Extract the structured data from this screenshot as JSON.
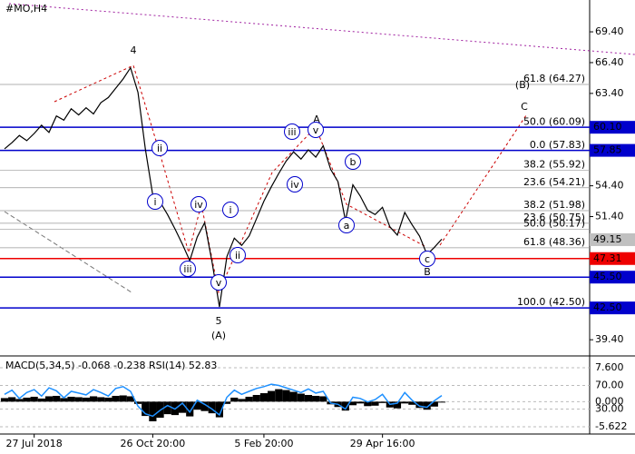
{
  "chart_data": {
    "type": "line",
    "title": "#MO,H4",
    "categories": [
      null,
      null,
      null,
      null,
      "27 Jul 2018",
      null,
      null,
      null,
      null,
      null,
      null,
      null,
      null,
      null,
      null,
      null,
      null,
      null,
      null,
      null,
      "26 Oct 20:00",
      null,
      null,
      null,
      null,
      null,
      null,
      null,
      null,
      null,
      null,
      null,
      null,
      null,
      null,
      "5 Feb 20:00",
      null,
      null,
      null,
      null,
      null,
      null,
      null,
      null,
      null,
      null,
      null,
      null,
      null,
      null,
      null,
      "29 Apr 16:00",
      null,
      null,
      null,
      null,
      null,
      null,
      null,
      null
    ],
    "values": [
      58.0,
      58.6,
      59.3,
      58.8,
      59.5,
      60.3,
      59.6,
      61.2,
      60.8,
      61.9,
      61.3,
      62.0,
      61.4,
      62.5,
      63.0,
      63.9,
      64.8,
      65.9,
      63.5,
      58.0,
      53.5,
      52.8,
      51.6,
      50.2,
      48.7,
      47.1,
      49.4,
      50.8,
      47.0,
      42.6,
      47.5,
      49.3,
      48.6,
      49.5,
      51.2,
      52.9,
      54.3,
      55.6,
      56.8,
      57.7,
      57.0,
      57.9,
      57.2,
      58.3,
      56.0,
      54.8,
      51.0,
      54.5,
      53.4,
      52.0,
      51.6,
      52.3,
      50.4,
      49.6,
      51.8,
      50.6,
      49.5,
      47.7,
      48.4,
      49.2
    ],
    "color": "#000000",
    "ylim": [
      38.0,
      72.5
    ],
    "yticks": [
      {
        "value": 69.4,
        "label": "69.40"
      },
      {
        "value": 66.4,
        "label": "66.40"
      },
      {
        "value": 63.4,
        "label": "63.40"
      },
      {
        "value": 54.4,
        "label": "54.40"
      },
      {
        "value": 51.4,
        "label": "51.40"
      },
      {
        "value": 39.4,
        "label": "39.40"
      }
    ],
    "levels": [
      {
        "value": 60.1,
        "label": "60.10",
        "color": "#0000cc"
      },
      {
        "value": 57.85,
        "label": "57.85",
        "color": "#0000cc"
      },
      {
        "value": 49.15,
        "label": "49.15",
        "color": "#c0c0c0"
      },
      {
        "value": 47.31,
        "label": "47.31",
        "color": "#ee0000"
      },
      {
        "value": 45.5,
        "label": "45.50",
        "color": "#0000cc"
      },
      {
        "value": 42.5,
        "label": "42.50",
        "color": "#0000cc"
      }
    ],
    "fib_levels": [
      {
        "value": 64.27,
        "label": "61.8 (64.27)"
      },
      {
        "value": 60.09,
        "label": "50.0 (60.09)"
      },
      {
        "value": 57.83,
        "label": "0.0 (57.83)"
      },
      {
        "value": 55.92,
        "label": "38.2 (55.92)"
      },
      {
        "value": 54.21,
        "label": "23.6 (54.21)"
      },
      {
        "value": 51.98,
        "label": "38.2 (51.98)"
      },
      {
        "value": 50.75,
        "label": "23.6 (50.75)"
      },
      {
        "value": 50.17,
        "label": "50.0 (50.17)"
      },
      {
        "value": 48.36,
        "label": "61.8 (48.36)"
      },
      {
        "value": 42.5,
        "label": "100.0 (42.50)"
      }
    ],
    "annotations": [
      {
        "text": "4",
        "color": "#8b2500"
      },
      {
        "text": "A",
        "color": "#8b2500"
      },
      {
        "text": "C",
        "color": "#8b2500"
      },
      {
        "text": "(B)",
        "color": "#1a7a1a"
      },
      {
        "text": "B",
        "color": "#8b2500"
      },
      {
        "text": "5",
        "color": "#8b2500"
      },
      {
        "text": "(A)",
        "color": "#1a7a1a"
      },
      {
        "text": "i",
        "color": "#0000cc"
      },
      {
        "text": "ii",
        "color": "#0000cc"
      },
      {
        "text": "iii",
        "color": "#0000cc"
      },
      {
        "text": "iv",
        "color": "#0000cc"
      },
      {
        "text": "v",
        "color": "#0000cc"
      },
      {
        "text": "i",
        "color": "#0000cc"
      },
      {
        "text": "ii",
        "color": "#0000cc"
      },
      {
        "text": "iii",
        "color": "#0000cc"
      },
      {
        "text": "iv",
        "color": "#0000cc"
      },
      {
        "text": "v",
        "color": "#0000cc"
      },
      {
        "text": "a",
        "color": "#0000cc"
      },
      {
        "text": "b",
        "color": "#0000cc"
      },
      {
        "text": "c",
        "color": "#0000cc"
      }
    ],
    "indicator": {
      "title": "MACD(5,34,5) -0.068 -0.238 RSI(14) 52.83",
      "macd": [
        0.8,
        1.0,
        0.6,
        0.9,
        1.1,
        0.7,
        1.2,
        1.3,
        0.8,
        1.1,
        1.0,
        0.9,
        1.2,
        1.0,
        0.9,
        1.3,
        1.4,
        1.2,
        -0.5,
        -3.2,
        -4.4,
        -3.6,
        -2.8,
        -3.0,
        -2.5,
        -3.3,
        -1.8,
        -2.1,
        -2.6,
        -3.5,
        -0.5,
        0.9,
        0.6,
        1.1,
        1.5,
        1.9,
        2.4,
        2.8,
        2.6,
        2.2,
        1.8,
        1.5,
        1.3,
        1.2,
        -0.6,
        -1.2,
        -2.0,
        -0.8,
        -0.4,
        -1.0,
        -0.9,
        -0.3,
        -1.3,
        -1.5,
        -0.4,
        -0.7,
        -1.4,
        -1.8,
        -1.1,
        -0.2
      ],
      "macd_color": "#000000",
      "macd_ylim": [
        -5.622,
        7.6
      ],
      "macd_ticks": [
        {
          "value": 7.6,
          "label": "7.600"
        },
        {
          "value": 0,
          "label": "0.000"
        },
        {
          "value": -5.622,
          "label": "-5.622"
        }
      ],
      "rsi": [
        55,
        62,
        48,
        58,
        63,
        52,
        66,
        61,
        49,
        60,
        57,
        54,
        63,
        58,
        52,
        65,
        68,
        60,
        35,
        22,
        18,
        28,
        36,
        30,
        40,
        25,
        45,
        38,
        30,
        20,
        50,
        62,
        55,
        60,
        65,
        68,
        72,
        70,
        66,
        62,
        58,
        64,
        57,
        60,
        40,
        38,
        30,
        50,
        48,
        42,
        46,
        55,
        38,
        40,
        58,
        45,
        35,
        33,
        44,
        53
      ],
      "rsi_color": "#1e90ff",
      "rsi_ylim": [
        0,
        100
      ],
      "rsi_ticks": [
        {
          "value": 70,
          "label": "70.00"
        },
        {
          "value": 30,
          "label": "30.00"
        }
      ]
    }
  }
}
